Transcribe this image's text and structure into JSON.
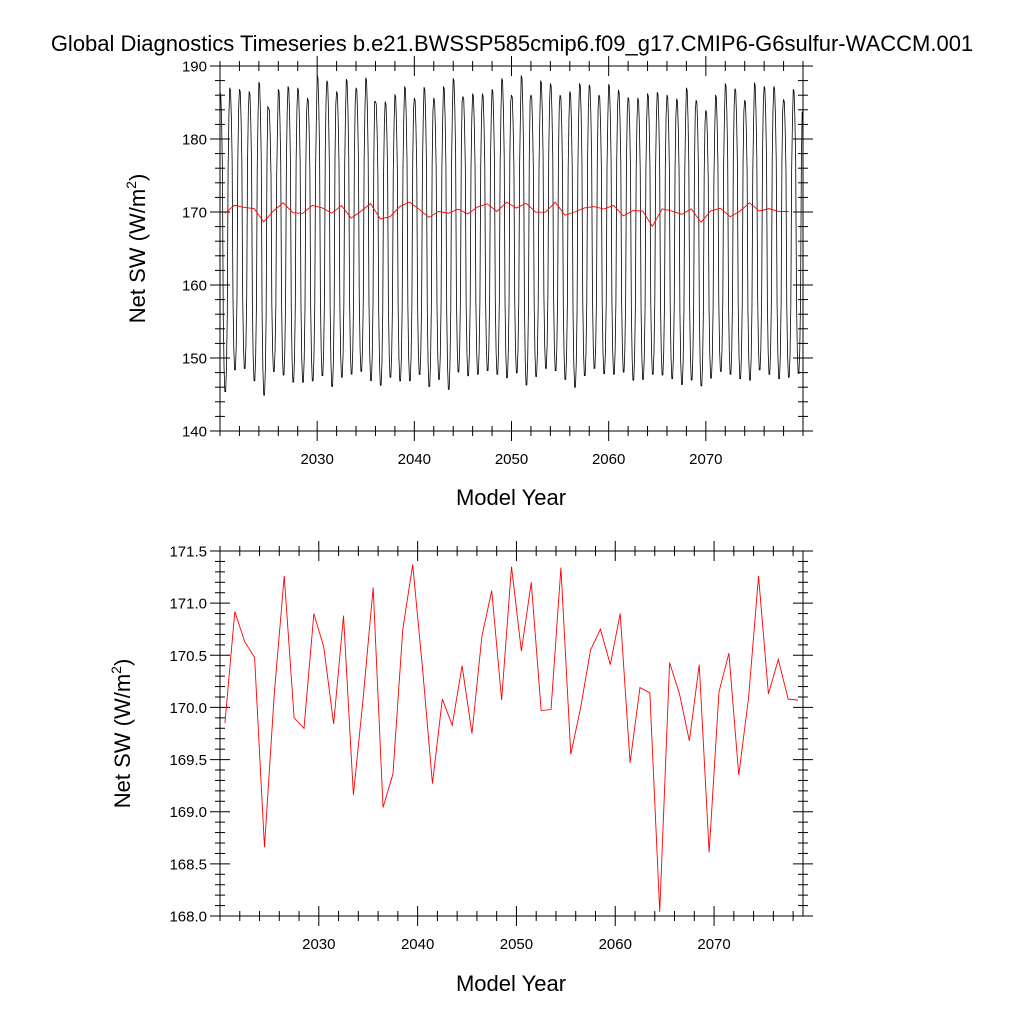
{
  "title": "Global Diagnostics Timeseries b.e21.BWSSP585cmip6.f09_g17.CMIP6-G6sulfur-WACCM.001",
  "colors": {
    "monthly": "#000000",
    "annual": "#ff0000",
    "frame": "#000000"
  },
  "chart_data": [
    {
      "type": "line",
      "xlabel": "Model Year",
      "ylabel": "Net SW (W/m²)",
      "ylabel_parts": {
        "main": "Net SW (W/m",
        "sup": "2",
        "end": ")"
      },
      "xlim": [
        2020,
        2080
      ],
      "ylim": [
        140,
        190
      ],
      "xticks": [
        2030,
        2040,
        2050,
        2060,
        2070
      ],
      "xtick_labels": [
        "2030",
        "2040",
        "2050",
        "2060",
        "2070"
      ],
      "yticks": [
        140,
        150,
        160,
        170,
        180,
        190
      ],
      "ytick_labels": [
        "140",
        "150",
        "160",
        "170",
        "180",
        "190"
      ],
      "grid": false,
      "series": [
        {
          "kind": "monthly_seasonal_cycle",
          "color": "#000000",
          "x_start": 2020.0,
          "x_step_years": 0.08333,
          "annual_max": [
            186.8,
            187.4,
            187.2,
            186.9,
            188.2,
            184.6,
            187.2,
            187.6,
            187.4,
            186.0,
            189.1,
            188.4,
            186.9,
            188.6,
            187.4,
            188.8,
            185.5,
            185.5,
            186.5,
            187.6,
            186.0,
            187.5,
            186.0,
            187.6,
            188.7,
            186.2,
            186.6,
            186.6,
            187.2,
            188.7,
            186.4,
            189.1,
            186.4,
            188.4,
            188.0,
            186.4,
            186.9,
            188.0,
            187.8,
            186.4,
            187.9,
            187.1,
            186.1,
            186.0,
            186.6,
            186.8,
            186.4,
            185.9,
            187.4,
            185.7,
            184.3,
            186.4,
            188.0,
            187.3,
            185.7,
            188.1,
            187.6,
            187.6,
            185.8,
            187.2
          ],
          "annual_min": [
            145.0,
            148.0,
            148.2,
            146.5,
            144.5,
            147.8,
            147.3,
            146.3,
            146.3,
            146.5,
            147.2,
            145.7,
            147.0,
            147.4,
            147.8,
            146.5,
            145.9,
            147.0,
            146.5,
            146.5,
            147.4,
            145.7,
            146.7,
            145.3,
            147.7,
            147.2,
            147.4,
            147.9,
            147.4,
            146.9,
            147.6,
            145.9,
            147.1,
            148.2,
            147.9,
            146.7,
            145.6,
            147.2,
            148.2,
            147.5,
            147.4,
            147.7,
            146.6,
            146.7,
            147.4,
            147.3,
            146.8,
            146.0,
            146.6,
            145.8,
            146.9,
            147.8,
            147.4,
            146.8,
            146.6,
            148.0,
            147.4,
            146.8,
            147.0,
            147.5
          ]
        },
        {
          "kind": "annual_mean",
          "color": "#ff0000",
          "x": [
            2020.5,
            2021.5,
            2022.5,
            2023.5,
            2024.5,
            2025.5,
            2026.5,
            2027.5,
            2028.5,
            2029.5,
            2030.5,
            2031.5,
            2032.5,
            2033.5,
            2034.5,
            2035.5,
            2036.5,
            2037.5,
            2038.5,
            2039.5,
            2040.5,
            2041.5,
            2042.5,
            2043.5,
            2044.5,
            2045.5,
            2046.5,
            2047.5,
            2048.5,
            2049.5,
            2050.5,
            2051.5,
            2052.5,
            2053.5,
            2054.5,
            2055.5,
            2056.5,
            2057.5,
            2058.5,
            2059.5,
            2060.5,
            2061.5,
            2062.5,
            2063.5,
            2064.5,
            2065.5,
            2066.5,
            2067.5,
            2068.5,
            2069.5,
            2070.5,
            2071.5,
            2072.5,
            2073.5,
            2074.5,
            2075.5,
            2076.5,
            2077.5,
            2078.5
          ],
          "values": [
            169.85,
            170.92,
            170.63,
            170.48,
            168.66,
            170.14,
            171.26,
            169.9,
            169.8,
            170.9,
            170.58,
            169.84,
            170.88,
            169.16,
            170.1,
            171.15,
            169.04,
            169.36,
            170.75,
            171.37,
            170.37,
            169.27,
            170.08,
            169.83,
            170.4,
            169.75,
            170.68,
            171.12,
            170.07,
            171.35,
            170.54,
            171.2,
            169.97,
            169.98,
            171.34,
            169.55,
            170.0,
            170.55,
            170.75,
            170.41,
            170.9,
            169.47,
            170.19,
            170.14,
            168.04,
            170.43,
            170.13,
            169.68,
            170.41,
            168.61,
            170.15,
            170.52,
            169.35,
            170.1,
            171.26,
            170.13,
            170.46,
            170.08,
            170.07
          ]
        }
      ]
    },
    {
      "type": "line",
      "xlabel": "Model Year",
      "ylabel": "Net SW (W/m²)",
      "ylabel_parts": {
        "main": "Net SW (W/m",
        "sup": "2",
        "end": ")"
      },
      "xlim": [
        2020,
        2079
      ],
      "ylim": [
        168.0,
        171.5
      ],
      "xticks": [
        2030,
        2040,
        2050,
        2060,
        2070
      ],
      "xtick_labels": [
        "2030",
        "2040",
        "2050",
        "2060",
        "2070"
      ],
      "yticks": [
        168.0,
        168.5,
        169.0,
        169.5,
        170.0,
        170.5,
        171.0,
        171.5
      ],
      "ytick_labels": [
        "168.0",
        "168.5",
        "169.0",
        "169.5",
        "170.0",
        "170.5",
        "171.0",
        "171.5"
      ],
      "grid": false,
      "series": [
        {
          "kind": "annual_mean",
          "color": "#ff0000",
          "x": [
            2020.5,
            2021.5,
            2022.5,
            2023.5,
            2024.5,
            2025.5,
            2026.5,
            2027.5,
            2028.5,
            2029.5,
            2030.5,
            2031.5,
            2032.5,
            2033.5,
            2034.5,
            2035.5,
            2036.5,
            2037.5,
            2038.5,
            2039.5,
            2040.5,
            2041.5,
            2042.5,
            2043.5,
            2044.5,
            2045.5,
            2046.5,
            2047.5,
            2048.5,
            2049.5,
            2050.5,
            2051.5,
            2052.5,
            2053.5,
            2054.5,
            2055.5,
            2056.5,
            2057.5,
            2058.5,
            2059.5,
            2060.5,
            2061.5,
            2062.5,
            2063.5,
            2064.5,
            2065.5,
            2066.5,
            2067.5,
            2068.5,
            2069.5,
            2070.5,
            2071.5,
            2072.5,
            2073.5,
            2074.5,
            2075.5,
            2076.5,
            2077.5,
            2078.5
          ],
          "values": [
            169.85,
            170.92,
            170.63,
            170.48,
            168.66,
            170.14,
            171.26,
            169.9,
            169.8,
            170.9,
            170.58,
            169.84,
            170.88,
            169.16,
            170.1,
            171.15,
            169.04,
            169.36,
            170.75,
            171.37,
            170.37,
            169.27,
            170.08,
            169.83,
            170.4,
            169.75,
            170.68,
            171.12,
            170.07,
            171.35,
            170.54,
            171.2,
            169.97,
            169.98,
            171.34,
            169.55,
            170.0,
            170.55,
            170.75,
            170.41,
            170.9,
            169.47,
            170.19,
            170.14,
            168.04,
            170.43,
            170.13,
            169.68,
            170.41,
            168.61,
            170.15,
            170.52,
            169.35,
            170.1,
            171.26,
            170.13,
            170.46,
            170.08,
            170.07
          ]
        }
      ]
    }
  ]
}
